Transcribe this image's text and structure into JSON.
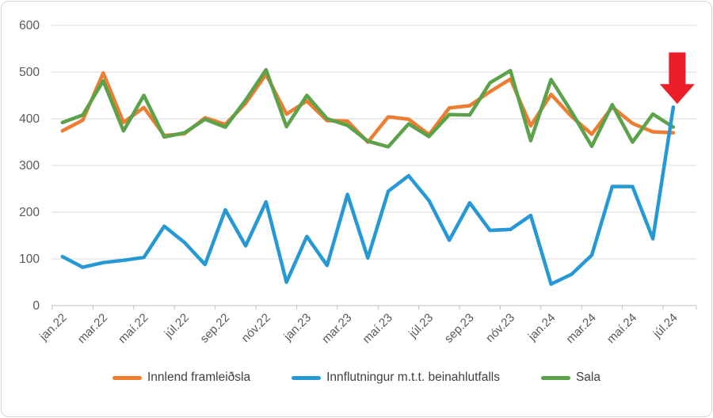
{
  "chart_data": {
    "type": "line",
    "title": "",
    "xlabel": "",
    "ylabel": "",
    "grid": "horizontal",
    "legend_position": "bottom",
    "y_axis": {
      "min": 0,
      "max": 600,
      "step": 100,
      "tick_labels": [
        "0",
        "100",
        "200",
        "300",
        "400",
        "500",
        "600"
      ]
    },
    "x_axis": {
      "shown_tick_labels": [
        "jan.22",
        "mar.22",
        "maí.22",
        "júl.22",
        "sep.22",
        "nóv.22",
        "jan.23",
        "mar.23",
        "maí.23",
        "júl.23",
        "sep.23",
        "nóv.23",
        "jan.24",
        "mar.24",
        "maí.24",
        "júl.24"
      ],
      "label_rotation_deg": 45
    },
    "categories": [
      "jan.22",
      "feb.22",
      "mar.22",
      "apr.22",
      "maí.22",
      "jún.22",
      "júl.22",
      "ágú.22",
      "sep.22",
      "okt.22",
      "nóv.22",
      "des.22",
      "jan.23",
      "feb.23",
      "mar.23",
      "apr.23",
      "maí.23",
      "jún.23",
      "júl.23",
      "ágú.23",
      "sep.23",
      "okt.23",
      "nóv.23",
      "des.23",
      "jan.24",
      "feb.24",
      "mar.24",
      "apr.24",
      "maí.24",
      "jún.24",
      "júl.24"
    ],
    "series": [
      {
        "name": "Innlend framleiðsla",
        "color": "#ED7D31",
        "values": [
          374,
          397,
          498,
          392,
          424,
          364,
          368,
          402,
          388,
          433,
          495,
          410,
          438,
          396,
          395,
          350,
          404,
          399,
          366,
          423,
          428,
          458,
          485,
          385,
          452,
          405,
          367,
          425,
          390,
          372,
          370
        ]
      },
      {
        "name": "Innflutningur m.t.t. beinahlutfalls",
        "color": "#2699D5",
        "values": [
          105,
          82,
          92,
          97,
          103,
          170,
          135,
          88,
          205,
          128,
          222,
          50,
          148,
          86,
          238,
          102,
          245,
          278,
          225,
          140,
          220,
          161,
          163,
          193,
          46,
          67,
          108,
          255,
          255,
          143,
          425
        ]
      },
      {
        "name": "Sala",
        "color": "#5BA24A",
        "values": [
          392,
          408,
          481,
          374,
          450,
          361,
          370,
          399,
          382,
          440,
          505,
          383,
          450,
          400,
          386,
          352,
          340,
          389,
          362,
          409,
          408,
          477,
          503,
          353,
          484,
          415,
          341,
          430,
          350,
          410,
          382
        ]
      }
    ],
    "annotation": {
      "type": "down-arrow",
      "color": "#EC1E28",
      "points_at_category": "júl.24",
      "points_at_series": "Innflutningur m.t.t. beinahlutfalls"
    },
    "colors": {
      "gridline": "#D9D9D9",
      "axis_line": "#BFBFBF",
      "tick_label": "#595959",
      "legend_text": "#3f3f3f",
      "frame_border": "#D7D7D7",
      "background": "#FFFFFF"
    }
  }
}
